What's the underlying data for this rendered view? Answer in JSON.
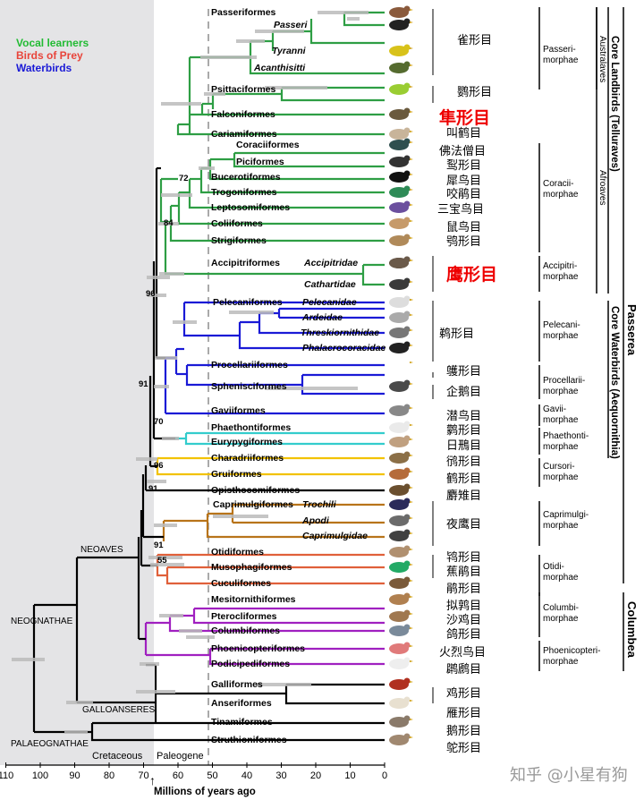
{
  "legend": {
    "vocal_learners": "Vocal learners",
    "birds_of_prey": "Birds of Prey",
    "waterbirds": "Waterbirds",
    "colors": {
      "vocal": "#22bb33",
      "prey": "#e8443a",
      "water": "#1a1ad6"
    }
  },
  "axis": {
    "title": "Millions of years ago",
    "ticks": [
      "110",
      "100",
      "90",
      "80",
      "70",
      "60",
      "50",
      "40",
      "30",
      "20",
      "10",
      "0"
    ],
    "cretaceous": "Cretaceous",
    "paleogene": "Paleogene"
  },
  "high_clades": {
    "neognathae": "NEOGNATHAE",
    "neoaves": "NEOAVES",
    "galloanseres": "GALLOANSERES",
    "palaeognathae": "PALAEOGNATHAE"
  },
  "node_supports": [
    "72",
    "84",
    "96",
    "91",
    "70",
    "96",
    "91",
    "91",
    "55"
  ],
  "taxa": [
    {
      "name": "Passeriformes",
      "cn": "",
      "color": "#2e9e44",
      "italic": false
    },
    {
      "name": "Passeri",
      "cn": "",
      "color": "#2e9e44",
      "italic": true
    },
    {
      "name": "Tyranni",
      "cn": "雀形目",
      "color": "#2e9e44",
      "italic": true
    },
    {
      "name": "Acanthisitti",
      "cn": "",
      "color": "#2e9e44",
      "italic": true
    },
    {
      "name": "Psittaciformes",
      "cn": "鹦形目",
      "color": "#2e9e44",
      "italic": false
    },
    {
      "name": "Falconiformes",
      "cn": "隼形目",
      "color": "#2e9e44",
      "italic": false
    },
    {
      "name": "Cariamiformes",
      "cn": "叫鹤目",
      "color": "#2e9e44",
      "italic": false
    },
    {
      "name": "Coraciiformes",
      "cn": "佛法僧目",
      "color": "#2e9e44",
      "italic": false
    },
    {
      "name": "Piciformes",
      "cn": "䴕形目",
      "color": "#2e9e44",
      "italic": false
    },
    {
      "name": "Bucerotiformes",
      "cn": "犀鸟目",
      "color": "#2e9e44",
      "italic": false
    },
    {
      "name": "Trogoniformes",
      "cn": "咬鹃目",
      "color": "#2e9e44",
      "italic": false
    },
    {
      "name": "Leptosomiformes",
      "cn": "三宝鸟目",
      "color": "#2e9e44",
      "italic": false
    },
    {
      "name": "Coliiformes",
      "cn": "鼠鸟目",
      "color": "#2e9e44",
      "italic": false
    },
    {
      "name": "Strigiformes",
      "cn": "鸮形目",
      "color": "#2e9e44",
      "italic": false
    },
    {
      "name": "Accipitriformes",
      "cn": "",
      "color": "#2e9e44",
      "italic": false
    },
    {
      "name": "Accipitridae",
      "cn": "鹰形目",
      "color": "#2e9e44",
      "italic": true
    },
    {
      "name": "Cathartidae",
      "cn": "",
      "color": "#2e9e44",
      "italic": true
    },
    {
      "name": "Pelecaniformes",
      "cn": "",
      "color": "#1a1ad6",
      "italic": false
    },
    {
      "name": "Pelecanidae",
      "cn": "",
      "color": "#1a1ad6",
      "italic": true
    },
    {
      "name": "Ardeidae",
      "cn": "鹈形目",
      "color": "#1a1ad6",
      "italic": true
    },
    {
      "name": "Threskiornithidae",
      "cn": "",
      "color": "#1a1ad6",
      "italic": true
    },
    {
      "name": "Phalacrocoracidae",
      "cn": "",
      "color": "#1a1ad6",
      "italic": true
    },
    {
      "name": "Procellariiformes",
      "cn": "鹱形目",
      "color": "#1a1ad6",
      "italic": false
    },
    {
      "name": "Sphenisciformes",
      "cn": "企鹅目",
      "color": "#1a1ad6",
      "italic": false
    },
    {
      "name": "Gaviiformes",
      "cn": "潜鸟目",
      "color": "#1a1ad6",
      "italic": false
    },
    {
      "name": "Phaethontiformes",
      "cn": "鹲形目",
      "color": "#33cccc",
      "italic": false
    },
    {
      "name": "Eurypygiformes",
      "cn": "日鳽目",
      "color": "#33cccc",
      "italic": false
    },
    {
      "name": "Charadriiformes",
      "cn": "鸻形目",
      "color": "#f2c200",
      "italic": false
    },
    {
      "name": "Gruiformes",
      "cn": "鹤形目",
      "color": "#f2c200",
      "italic": false
    },
    {
      "name": "Opisthocomiformes",
      "cn": "麝雉目",
      "color": "#000000",
      "italic": false
    },
    {
      "name": "Caprimulgiformes",
      "cn": "",
      "color": "#b8741a",
      "italic": false
    },
    {
      "name": "Apodi",
      "cn": "夜鹰目",
      "color": "#b8741a",
      "italic": true
    },
    {
      "name": "Caprimulgidae",
      "cn": "",
      "color": "#b8741a",
      "italic": true
    },
    {
      "name": "Otidiformes",
      "cn": "鸨形目",
      "color": "#e0603a",
      "italic": false
    },
    {
      "name": "Musophagiformes",
      "cn": "蕉鹃目",
      "color": "#e0603a",
      "italic": false
    },
    {
      "name": "Cuculiformes",
      "cn": "鹃形目",
      "color": "#e0603a",
      "italic": false
    },
    {
      "name": "Mesitornithiformes",
      "cn": "拟鹑目",
      "color": "#a020c0",
      "italic": false
    },
    {
      "name": "Pterocliformes",
      "cn": "沙鸡目",
      "color": "#a020c0",
      "italic": false
    },
    {
      "name": "Columbiformes",
      "cn": "鸽形目",
      "color": "#a020c0",
      "italic": false
    },
    {
      "name": "Phoenicopteriformes",
      "cn": "火烈鸟目",
      "color": "#a020c0",
      "italic": false
    },
    {
      "name": "Podicipediformes",
      "cn": "䴙䴘目",
      "color": "#a020c0",
      "italic": false
    },
    {
      "name": "Galliformes",
      "cn": "",
      "color": "#000000",
      "italic": false
    },
    {
      "name": "Anseriformes",
      "cn": "鸡形目",
      "color": "#000000",
      "italic": false
    },
    {
      "name": "Tinamiformes",
      "cn": "雁形目",
      "color": "#000000",
      "italic": false
    },
    {
      "name": "Struthioniformes",
      "cn": "鹅形目",
      "color": "#000000",
      "italic": false
    }
  ],
  "extra_labels": {
    "trochili": "Trochili",
    "struthio_cn": "鸵形目"
  },
  "morphae": [
    {
      "label": "Passeri-\nmorphae"
    },
    {
      "label": "Coracii-\nmorphae"
    },
    {
      "label": "Accipitri-\nmorphae"
    },
    {
      "label": "Pelecani-\nmorphae"
    },
    {
      "label": "Procellarii-\nmorphae"
    },
    {
      "label": "Gavii-\nmorphae"
    },
    {
      "label": "Phaethonti-\nmorphae"
    },
    {
      "label": "Cursori-\nmorphae"
    },
    {
      "label": "Caprimulgi-\nmorphae"
    },
    {
      "label": "Otidi-\nmorphae"
    },
    {
      "label": "Columbi-\nmorphae"
    },
    {
      "label": "Phoenicopteri-\nmorphae"
    }
  ],
  "vertical_clades": {
    "australaves": "Australaves",
    "afroaves": "Afroaves",
    "core_landbirds": "Core Landbirds (Telluraves)",
    "core_waterbirds": "Core Waterbirds (Aequornithia)",
    "passerea": "Passerea",
    "columbea": "Columbea"
  },
  "watermark": "知乎 @小星有狗"
}
